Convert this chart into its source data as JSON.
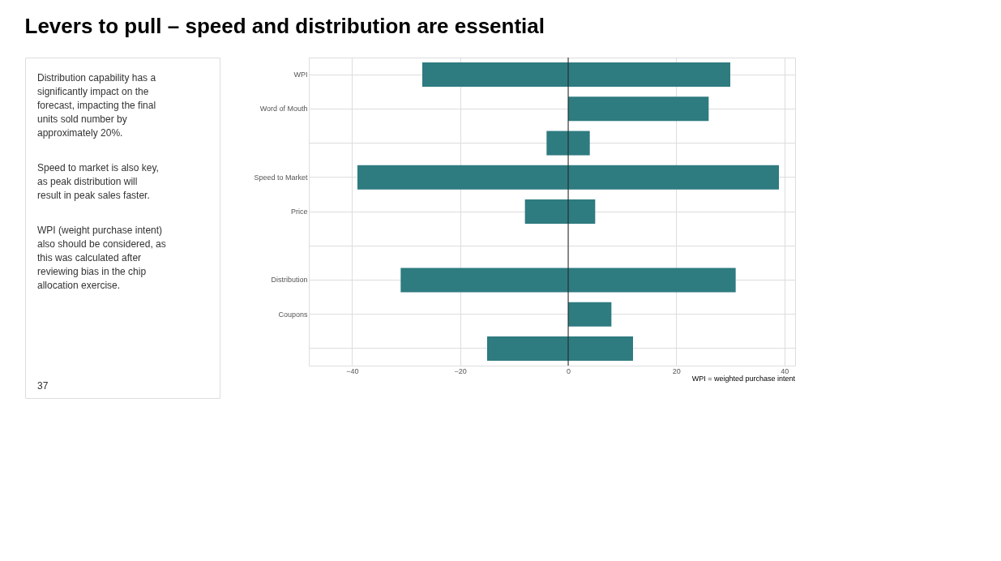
{
  "chart_data": {
    "type": "bar",
    "orientation": "horizontal",
    "stacked": true,
    "title": "Levers to pull – speed and distribution are essential",
    "categories": [
      "WPI",
      "Word of Mouth",
      null,
      "Speed to Market",
      "Price",
      null,
      "Distribution",
      "Coupons",
      null
    ],
    "series": [
      {
        "color": "#2e7b80",
        "values": [
          -27,
          0,
          -4,
          -39,
          -8,
          0,
          -31,
          0,
          -15
        ]
      },
      {
        "color": "#2e7b80",
        "values": [
          30,
          26,
          4,
          39,
          5,
          0,
          31,
          8,
          12
        ]
      }
    ],
    "xlim": [
      -48,
      42
    ],
    "xticks": [
      -40,
      -20,
      0,
      20,
      40
    ],
    "grid": true,
    "annotations": [
      "Distribution capability has a significantly impact on the forecast, impacting the final units sold number by approximately 20%.",
      "Speed to market is also key, as peak distribution will result in peak sales faster.",
      "WPI (weight purchase intent) also should be considered, as this was calculated after reviewing bias in the chip allocation exercise.",
      "WPI = weighted purchase intent",
      "37"
    ]
  }
}
